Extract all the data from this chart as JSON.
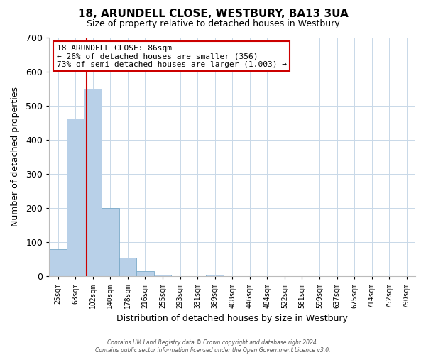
{
  "title": "18, ARUNDELL CLOSE, WESTBURY, BA13 3UA",
  "subtitle": "Size of property relative to detached houses in Westbury",
  "xlabel": "Distribution of detached houses by size in Westbury",
  "ylabel": "Number of detached properties",
  "bar_labels": [
    "25sqm",
    "63sqm",
    "102sqm",
    "140sqm",
    "178sqm",
    "216sqm",
    "255sqm",
    "293sqm",
    "331sqm",
    "369sqm",
    "408sqm",
    "446sqm",
    "484sqm",
    "522sqm",
    "561sqm",
    "599sqm",
    "637sqm",
    "675sqm",
    "714sqm",
    "752sqm",
    "790sqm"
  ],
  "bar_values": [
    80,
    462,
    550,
    200,
    55,
    15,
    5,
    0,
    0,
    5,
    0,
    0,
    0,
    0,
    0,
    0,
    0,
    0,
    0,
    0,
    0
  ],
  "bar_color": "#b8d0e8",
  "bar_edge_color": "#7aaac8",
  "ylim": [
    0,
    700
  ],
  "yticks": [
    0,
    100,
    200,
    300,
    400,
    500,
    600,
    700
  ],
  "vline_x_index": 1.65,
  "vline_color": "#cc0000",
  "annotation_title": "18 ARUNDELL CLOSE: 86sqm",
  "annotation_line1": "← 26% of detached houses are smaller (356)",
  "annotation_line2": "73% of semi-detached houses are larger (1,003) →",
  "annotation_box_color": "#ffffff",
  "annotation_border_color": "#cc0000",
  "footer_line1": "Contains HM Land Registry data © Crown copyright and database right 2024.",
  "footer_line2": "Contains public sector information licensed under the Open Government Licence v3.0.",
  "bg_color": "#ffffff",
  "grid_color": "#c8d8e8"
}
